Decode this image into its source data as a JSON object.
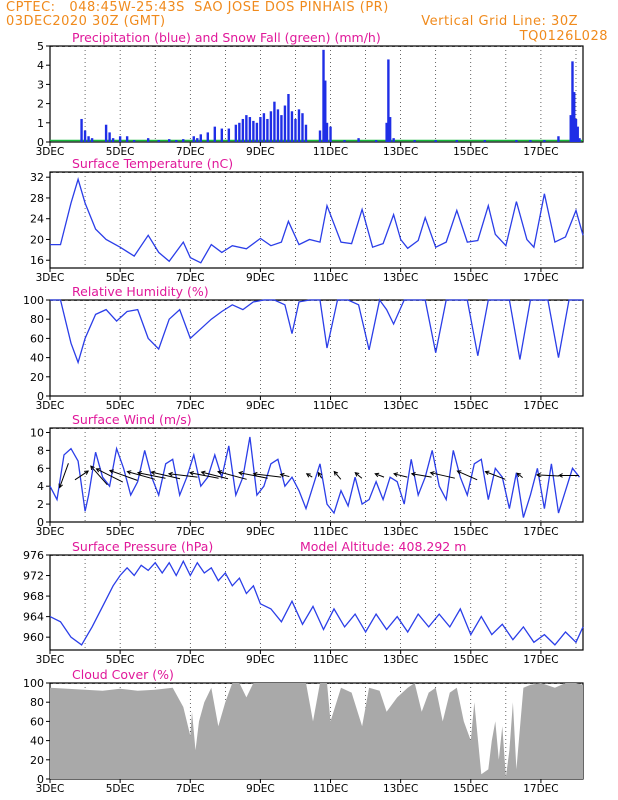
{
  "header": {
    "line1": "CPTEC:   048:45W-25:43S  SAO JOSE DOS PINHAIS (PR)",
    "line2_left": "03DEC2020 30Z (GMT)",
    "line2_right": "Vertical Grid Line: 30Z",
    "line3_right": "TQ0126L028"
  },
  "colors": {
    "header": "#f08a1c",
    "title": "#e0189a",
    "precip": "#1f2ee6",
    "snow": "#16b83a",
    "line": "#2b3ee8",
    "cloud": "#a9a9a9",
    "axis": "#000000",
    "grid": "#000000"
  },
  "x_ticks": [
    "3DEC",
    "5DEC",
    "7DEC",
    "9DEC",
    "11DEC",
    "13DEC",
    "15DEC",
    "17DEC"
  ],
  "chart_data": [
    {
      "type": "bar",
      "title": "Precipitation (blue) and Snow Fall (green) (mm/h)",
      "ylim": [
        0,
        5
      ],
      "yticks": [
        "0",
        "1",
        "2",
        "3",
        "4",
        "5"
      ],
      "x_domain_days": [
        3,
        18.2
      ],
      "series": [
        {
          "values_note_unused": "",
          "x": [
            3.9,
            4.0,
            4.1,
            4.2,
            4.6,
            4.7,
            4.8,
            5.0,
            5.2,
            5.4,
            5.8,
            6.1,
            6.4,
            6.6,
            6.8,
            7.1,
            7.2,
            7.3,
            7.5,
            7.7,
            7.9,
            8.1,
            8.3,
            8.4,
            8.5,
            8.6,
            8.7,
            8.8,
            8.9,
            9.0,
            9.1,
            9.2,
            9.3,
            9.4,
            9.5,
            9.6,
            9.7,
            9.8,
            9.9,
            10.0,
            10.1,
            10.2,
            10.3,
            10.7,
            10.8,
            10.85,
            10.9,
            11.0,
            11.4,
            11.8,
            12.3,
            12.6,
            12.65,
            12.7,
            12.8,
            13.4,
            14.0,
            14.6,
            15.4,
            16.3,
            16.7,
            17.1,
            17.5,
            17.85,
            17.9,
            17.95,
            18.0,
            18.05,
            18.1
          ],
          "values": [
            1.2,
            0.6,
            0.3,
            0.2,
            0.9,
            0.5,
            0.2,
            0.3,
            0.3,
            0.1,
            0.2,
            0.1,
            0.15,
            0.1,
            0.15,
            0.3,
            0.2,
            0.4,
            0.5,
            0.8,
            0.7,
            0.7,
            0.9,
            1.0,
            1.2,
            1.4,
            1.3,
            1.1,
            1.0,
            1.3,
            1.5,
            1.2,
            1.6,
            2.1,
            1.7,
            1.4,
            1.9,
            2.5,
            1.6,
            1.2,
            1.7,
            1.5,
            0.9,
            0.6,
            4.8,
            3.2,
            1.0,
            0.8,
            0.1,
            0.2,
            0.1,
            1.0,
            4.3,
            1.3,
            0.2,
            0.1,
            0.1,
            0.1,
            0.1,
            0.1,
            0.1,
            0.1,
            0.3,
            1.4,
            4.2,
            2.6,
            1.2,
            0.8,
            0.2
          ]
        }
      ]
    },
    {
      "type": "line",
      "title": "Surface Temperature (nC)",
      "ylim": [
        14.5,
        33
      ],
      "yticks": [
        "16",
        "20",
        "24",
        "28",
        "32"
      ],
      "x_domain_days": [
        3,
        18.2
      ],
      "series": [
        {
          "x": [
            3.0,
            3.3,
            3.6,
            3.8,
            4.0,
            4.3,
            4.6,
            5.0,
            5.4,
            5.8,
            6.1,
            6.4,
            6.8,
            7.0,
            7.3,
            7.6,
            7.9,
            8.2,
            8.6,
            9.0,
            9.3,
            9.6,
            9.8,
            10.1,
            10.4,
            10.7,
            10.9,
            11.3,
            11.6,
            11.9,
            12.2,
            12.5,
            12.8,
            13.0,
            13.2,
            13.5,
            13.7,
            14.0,
            14.3,
            14.6,
            14.9,
            15.2,
            15.5,
            15.7,
            16.0,
            16.3,
            16.6,
            16.8,
            17.1,
            17.4,
            17.7,
            18.0,
            18.2
          ],
          "y": [
            19,
            19,
            27,
            31.6,
            27,
            22,
            20,
            18.5,
            16.8,
            20.8,
            17.5,
            15.8,
            19.5,
            16.5,
            15.5,
            19,
            17.5,
            18.8,
            18.2,
            20.2,
            18.8,
            19.5,
            23.5,
            19,
            20,
            19.5,
            26.5,
            19.5,
            19.2,
            25.8,
            18.5,
            19.2,
            24.8,
            20,
            18.3,
            19.8,
            24.2,
            18.5,
            19.5,
            25.6,
            19.5,
            19.8,
            26.5,
            21,
            18.8,
            27.3,
            20,
            18.5,
            28.8,
            19.5,
            20.5,
            25.6,
            20.8
          ]
        }
      ]
    },
    {
      "type": "line",
      "title": "Relative Humidity (%)",
      "ylim": [
        0,
        100
      ],
      "yticks": [
        "0",
        "20",
        "40",
        "60",
        "80",
        "100"
      ],
      "x_domain_days": [
        3,
        18.2
      ],
      "series": [
        {
          "x": [
            3.0,
            3.3,
            3.6,
            3.8,
            4.0,
            4.3,
            4.6,
            4.9,
            5.2,
            5.5,
            5.8,
            6.1,
            6.4,
            6.7,
            7.0,
            7.3,
            7.6,
            7.9,
            8.2,
            8.5,
            8.8,
            9.1,
            9.4,
            9.7,
            9.9,
            10.1,
            10.4,
            10.7,
            10.9,
            11.2,
            11.5,
            11.8,
            12.1,
            12.4,
            12.6,
            12.8,
            13.1,
            13.4,
            13.7,
            14.0,
            14.3,
            14.6,
            14.9,
            15.2,
            15.5,
            15.8,
            16.1,
            16.4,
            16.7,
            16.9,
            17.2,
            17.5,
            17.8,
            18.2
          ],
          "y": [
            100,
            100,
            55,
            35,
            60,
            85,
            90,
            78,
            88,
            90,
            60,
            49,
            80,
            90,
            60,
            70,
            80,
            88,
            95,
            90,
            98,
            100,
            100,
            95,
            65,
            98,
            100,
            100,
            50,
            100,
            100,
            95,
            48,
            100,
            90,
            75,
            100,
            100,
            100,
            45,
            100,
            100,
            100,
            42,
            100,
            100,
            100,
            38,
            100,
            100,
            100,
            40,
            100,
            100
          ]
        }
      ]
    },
    {
      "type": "line",
      "title": "Surface Wind (m/s)",
      "ylim": [
        0,
        10.5
      ],
      "yticks": [
        "0",
        "2",
        "4",
        "6",
        "8",
        "10"
      ],
      "x_domain_days": [
        3,
        18.2
      ],
      "series": [
        {
          "x": [
            3.0,
            3.2,
            3.4,
            3.6,
            3.8,
            4.0,
            4.1,
            4.3,
            4.5,
            4.7,
            4.9,
            5.1,
            5.3,
            5.5,
            5.7,
            5.9,
            6.1,
            6.3,
            6.5,
            6.7,
            6.9,
            7.1,
            7.3,
            7.5,
            7.7,
            7.9,
            8.1,
            8.3,
            8.5,
            8.7,
            8.9,
            9.1,
            9.3,
            9.5,
            9.7,
            9.9,
            10.1,
            10.3,
            10.5,
            10.7,
            10.9,
            11.1,
            11.3,
            11.5,
            11.7,
            11.9,
            12.1,
            12.3,
            12.5,
            12.7,
            12.9,
            13.1,
            13.3,
            13.5,
            13.7,
            13.9,
            14.1,
            14.3,
            14.5,
            14.7,
            14.9,
            15.1,
            15.3,
            15.5,
            15.7,
            15.9,
            16.1,
            16.3,
            16.5,
            16.7,
            16.9,
            17.1,
            17.3,
            17.5,
            17.7,
            17.9,
            18.1
          ],
          "y": [
            4,
            2.5,
            7.5,
            8.2,
            6.8,
            1.2,
            3,
            7.8,
            5,
            4,
            8.2,
            6,
            3,
            4.5,
            8,
            5,
            3,
            6.5,
            7,
            3,
            5,
            7.5,
            4,
            5,
            7.5,
            5,
            8.5,
            3,
            5,
            9.5,
            3,
            4,
            6.5,
            7,
            4,
            5,
            3.5,
            1.5,
            4,
            6.5,
            2,
            1,
            3.5,
            1.8,
            5,
            2,
            2.5,
            4.5,
            2.5,
            5,
            4.5,
            2,
            7,
            3,
            5,
            8,
            4,
            2.5,
            8,
            5,
            3,
            6.5,
            7,
            2.5,
            6,
            5,
            1.5,
            5.5,
            0.5,
            3,
            6,
            1.5,
            6.5,
            1,
            3.5,
            6,
            5
          ]
        }
      ],
      "arrows": [
        [
          3.4,
          -0.8,
          -2.2
        ],
        [
          3.9,
          1.2,
          0.8
        ],
        [
          4.4,
          -1.5,
          1.7
        ],
        [
          4.7,
          -2.4,
          1.2
        ],
        [
          5.1,
          -2.5,
          0.9
        ],
        [
          5.6,
          -2.5,
          0.7
        ],
        [
          5.9,
          -2.5,
          0.5
        ],
        [
          6.3,
          -2.6,
          0.6
        ],
        [
          6.8,
          -2.6,
          0.3
        ],
        [
          7.4,
          -2.6,
          0.5
        ],
        [
          7.7,
          -2.4,
          0.6
        ],
        [
          8.2,
          -2.6,
          0.7
        ],
        [
          8.8,
          -2.6,
          0.5
        ],
        [
          9.2,
          -2.5,
          0.3
        ],
        [
          9.7,
          -0.8,
          0.2
        ],
        [
          10.4,
          -0.5,
          0.3
        ],
        [
          10.7,
          -0.3,
          0.5
        ],
        [
          11.2,
          -0.6,
          0.7
        ],
        [
          11.8,
          -0.6,
          0.5
        ],
        [
          12.4,
          -0.8,
          0.3
        ],
        [
          13.0,
          -1.2,
          0.3
        ],
        [
          13.6,
          -1.8,
          0.3
        ],
        [
          14.2,
          -2.2,
          0.5
        ],
        [
          14.9,
          -1.8,
          0.8
        ],
        [
          15.7,
          -1.8,
          0.7
        ],
        [
          16.4,
          -0.5,
          0.4
        ],
        [
          17.2,
          -2.0,
          0.1
        ],
        [
          17.8,
          -1.8,
          0.0
        ]
      ]
    },
    {
      "type": "line",
      "title": "Surface Pressure (hPa)",
      "annotation": "Model Altitude: 408.292  m",
      "ylim": [
        957.5,
        976
      ],
      "yticks": [
        "960",
        "964",
        "968",
        "972",
        "976"
      ],
      "x_domain_days": [
        3,
        18.2
      ],
      "series": [
        {
          "x": [
            3.0,
            3.3,
            3.6,
            3.9,
            4.2,
            4.5,
            4.8,
            5.0,
            5.2,
            5.4,
            5.6,
            5.8,
            6.0,
            6.2,
            6.4,
            6.6,
            6.8,
            7.0,
            7.2,
            7.4,
            7.6,
            7.8,
            8.0,
            8.2,
            8.4,
            8.6,
            8.8,
            9.0,
            9.3,
            9.6,
            9.9,
            10.2,
            10.5,
            10.8,
            11.1,
            11.4,
            11.7,
            12.0,
            12.3,
            12.6,
            12.9,
            13.2,
            13.5,
            13.8,
            14.1,
            14.4,
            14.7,
            15.0,
            15.3,
            15.6,
            15.9,
            16.2,
            16.5,
            16.8,
            17.1,
            17.4,
            17.7,
            18.0,
            18.2
          ],
          "y": [
            964,
            963,
            960,
            958.5,
            962,
            966,
            970,
            972,
            973.5,
            972,
            974,
            973,
            974.5,
            972.5,
            974.5,
            972,
            974.8,
            972,
            974.5,
            972.5,
            973.5,
            971,
            972.5,
            970,
            971.5,
            968.5,
            970,
            966.5,
            965.5,
            963,
            967,
            962.5,
            966,
            961.5,
            965.5,
            962,
            964.5,
            961,
            964.5,
            961.5,
            964,
            961,
            964.5,
            962,
            964.5,
            962,
            965.5,
            960.5,
            964,
            960.5,
            962.5,
            959.5,
            962,
            959,
            960.5,
            958.5,
            961,
            959,
            962
          ]
        }
      ]
    },
    {
      "type": "area",
      "title": "Cloud Cover (%)",
      "ylim": [
        0,
        100
      ],
      "yticks": [
        "0",
        "20",
        "40",
        "60",
        "80",
        "100"
      ],
      "x_domain_days": [
        3,
        18.2
      ],
      "series": [
        {
          "x": [
            3.0,
            3.5,
            4.0,
            4.5,
            5.0,
            5.5,
            6.0,
            6.5,
            6.8,
            7.0,
            7.05,
            7.15,
            7.25,
            7.4,
            7.6,
            7.8,
            8.0,
            8.2,
            8.4,
            8.6,
            8.8,
            9.0,
            9.5,
            10.0,
            10.3,
            10.5,
            10.7,
            10.9,
            11.0,
            11.3,
            11.6,
            11.9,
            12.1,
            12.4,
            12.6,
            12.9,
            13.2,
            13.4,
            13.6,
            13.8,
            14.0,
            14.2,
            14.4,
            14.6,
            14.8,
            15.0,
            15.1,
            15.3,
            15.5,
            15.6,
            15.7,
            15.8,
            15.9,
            16.0,
            16.1,
            16.2,
            16.3,
            16.5,
            16.7,
            17.0,
            17.4,
            17.7,
            18.0,
            18.2
          ],
          "y": [
            95,
            94,
            93,
            92,
            94,
            92,
            93,
            95,
            75,
            45,
            70,
            30,
            60,
            80,
            95,
            55,
            80,
            100,
            100,
            85,
            100,
            100,
            100,
            100,
            100,
            60,
            100,
            100,
            60,
            95,
            90,
            55,
            95,
            92,
            70,
            85,
            95,
            100,
            70,
            90,
            95,
            60,
            90,
            95,
            60,
            40,
            80,
            5,
            10,
            40,
            60,
            20,
            55,
            2,
            30,
            80,
            10,
            95,
            98,
            100,
            95,
            100,
            100,
            98
          ]
        }
      ]
    }
  ]
}
